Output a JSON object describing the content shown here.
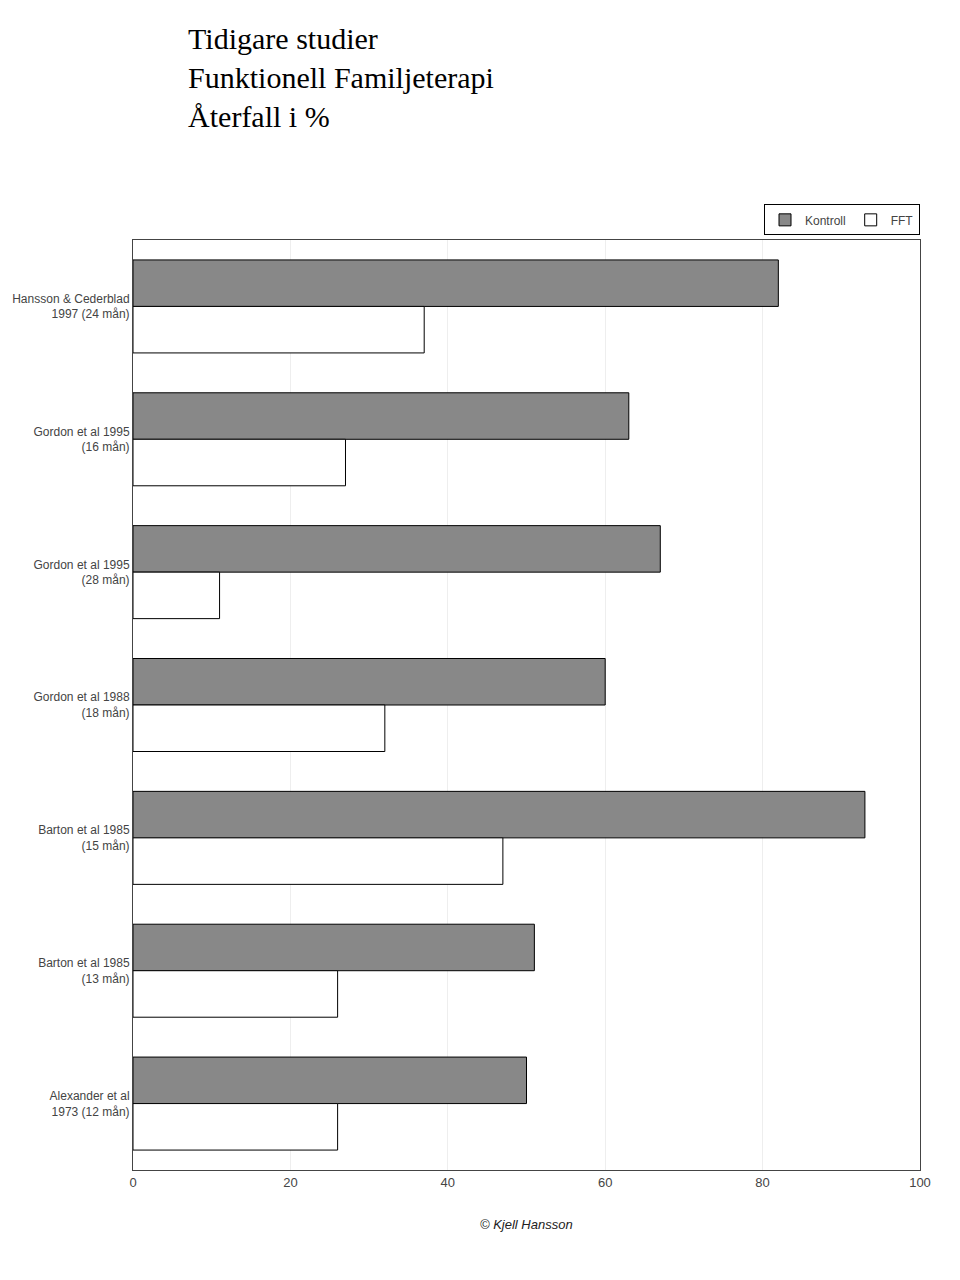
{
  "chart_data": {
    "type": "bar",
    "orientation": "horizontal",
    "title": "Tidigare studier\nFunktionell Familjeterapi\nÅterfall i %",
    "categories": [
      "Hansson & Cederblad\n1997 (24 mån)",
      "Gordon et al 1995\n(16 mån)",
      "Gordon et al 1995\n(28 mån)",
      "Gordon et al 1988\n(18 mån)",
      "Barton et al 1985\n(15 mån)",
      "Barton et al 1985\n(13 mån)",
      "Alexander et al\n1973 (12 mån)"
    ],
    "series": [
      {
        "name": "Kontroll",
        "color": "#888888",
        "values": [
          82,
          63,
          67,
          60,
          93,
          51,
          50
        ]
      },
      {
        "name": "FFT",
        "color": "#ffffff",
        "values": [
          37,
          27,
          11,
          32,
          47,
          26,
          26
        ]
      }
    ],
    "xlim": [
      0,
      100
    ],
    "xticks": [
      0,
      20,
      40,
      60,
      80,
      100
    ],
    "grid": true,
    "legend": "upper right",
    "annotations": [
      "© Kjell Hansson"
    ]
  }
}
